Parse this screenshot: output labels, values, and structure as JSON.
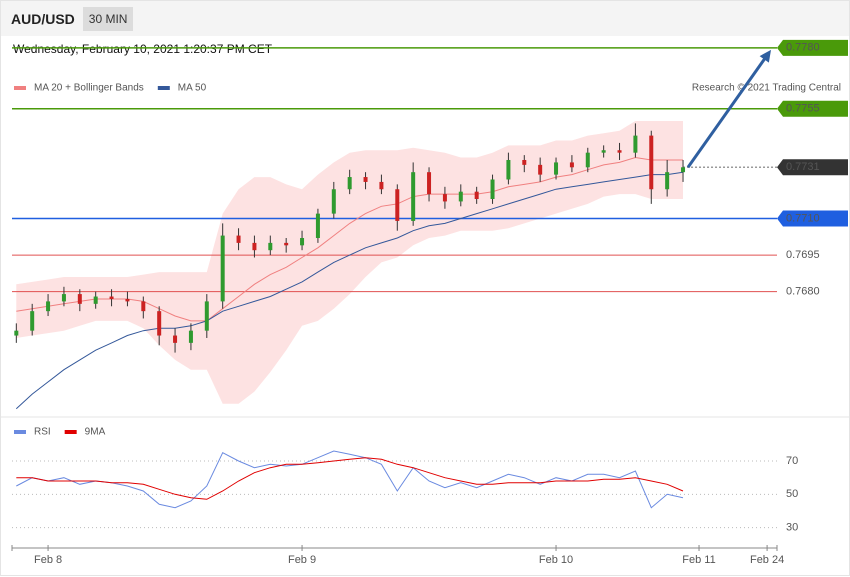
{
  "header": {
    "symbol": "AUD/USD",
    "interval": "30 MIN",
    "datetime": "Wednesday, February 10, 2021 1:20:37 PM CET",
    "credit": "Research © 2021 Trading Central"
  },
  "chart_data": [
    {
      "type": "candlestick",
      "up_color": "#2f9a2f",
      "down_color": "#cc2222",
      "xlim": [
        -0.142,
        2.87
      ],
      "ylim": [
        0.7629,
        0.77828
      ],
      "x": [
        -0.125,
        -0.0625,
        0,
        0.0625,
        0.125,
        0.1875,
        0.25,
        0.3125,
        0.375,
        0.4375,
        0.5,
        0.5625,
        0.625,
        0.6875,
        0.75,
        0.8125,
        0.875,
        0.9375,
        1,
        1.0625,
        1.125,
        1.1875,
        1.25,
        1.3125,
        1.375,
        1.4375,
        1.5,
        1.5625,
        1.625,
        1.6875,
        1.75,
        1.8125,
        1.875,
        1.9375,
        2,
        2.0625,
        2.125,
        2.1875,
        2.25,
        2.3125,
        2.375,
        2.4375,
        2.5
      ],
      "open": [
        0.7662,
        0.7664,
        0.7672,
        0.7676,
        0.7679,
        0.7675,
        0.7678,
        0.7677,
        0.7676,
        0.7672,
        0.7662,
        0.7659,
        0.7664,
        0.7676,
        0.7703,
        0.77,
        0.7697,
        0.77,
        0.7699,
        0.7702,
        0.7712,
        0.7722,
        0.7727,
        0.7725,
        0.7722,
        0.7709,
        0.7729,
        0.772,
        0.7717,
        0.7721,
        0.7718,
        0.7726,
        0.7734,
        0.7732,
        0.7728,
        0.7733,
        0.7731,
        0.7737,
        0.7738,
        0.7737,
        0.7744,
        0.7722,
        0.7729
      ],
      "high": [
        0.7667,
        0.7675,
        0.7679,
        0.7682,
        0.7681,
        0.768,
        0.7681,
        0.768,
        0.7678,
        0.7674,
        0.7665,
        0.7667,
        0.7679,
        0.7708,
        0.7706,
        0.7703,
        0.7703,
        0.7702,
        0.7705,
        0.7714,
        0.7725,
        0.773,
        0.7729,
        0.7728,
        0.7724,
        0.7733,
        0.7731,
        0.7723,
        0.7724,
        0.7723,
        0.7728,
        0.7737,
        0.7736,
        0.7735,
        0.7735,
        0.7736,
        0.7739,
        0.774,
        0.7741,
        0.7749,
        0.7746,
        0.7734,
        0.7734
      ],
      "low": [
        0.7659,
        0.7662,
        0.767,
        0.7674,
        0.7672,
        0.7673,
        0.7674,
        0.7674,
        0.7669,
        0.7658,
        0.7655,
        0.7656,
        0.7661,
        0.7673,
        0.7697,
        0.7694,
        0.7695,
        0.7696,
        0.7697,
        0.77,
        0.771,
        0.772,
        0.7722,
        0.772,
        0.7705,
        0.7707,
        0.7717,
        0.7714,
        0.7715,
        0.7716,
        0.7716,
        0.7724,
        0.7729,
        0.7725,
        0.7726,
        0.7729,
        0.7729,
        0.7735,
        0.7734,
        0.7735,
        0.7716,
        0.7719,
        0.7725
      ],
      "close": [
        0.7664,
        0.7672,
        0.7676,
        0.7679,
        0.7675,
        0.7678,
        0.7677,
        0.7676,
        0.7672,
        0.7662,
        0.7659,
        0.7664,
        0.7676,
        0.7703,
        0.77,
        0.7697,
        0.77,
        0.7699,
        0.7702,
        0.7712,
        0.7722,
        0.7727,
        0.7725,
        0.7722,
        0.7709,
        0.7729,
        0.772,
        0.7717,
        0.7721,
        0.7718,
        0.7726,
        0.7734,
        0.7732,
        0.7728,
        0.7733,
        0.7731,
        0.7737,
        0.7738,
        0.7737,
        0.7744,
        0.7722,
        0.7729,
        0.7731
      ],
      "series": [
        {
          "name": "MA 20 + Bollinger Bands",
          "color": "#f08080",
          "band_color": "#fde2e2",
          "values": [
            0.7672,
            0.7673,
            0.7674,
            0.7675,
            0.7676,
            0.7677,
            0.7677,
            0.7677,
            0.7676,
            0.7673,
            0.767,
            0.7668,
            0.7668,
            0.7673,
            0.7678,
            0.7683,
            0.7687,
            0.769,
            0.7694,
            0.7698,
            0.7703,
            0.7708,
            0.7712,
            0.7715,
            0.7716,
            0.7719,
            0.772,
            0.772,
            0.772,
            0.772,
            0.7721,
            0.7723,
            0.7724,
            0.7725,
            0.7727,
            0.7728,
            0.773,
            0.7732,
            0.7733,
            0.7735,
            0.7734,
            0.7734,
            0.7734
          ],
          "upper": [
            0.7683,
            0.7684,
            0.7685,
            0.7686,
            0.7686,
            0.7686,
            0.7686,
            0.7686,
            0.7687,
            0.7688,
            0.7688,
            0.7688,
            0.7688,
            0.7712,
            0.7722,
            0.7727,
            0.7727,
            0.7724,
            0.7722,
            0.7728,
            0.7733,
            0.7737,
            0.7738,
            0.7738,
            0.7738,
            0.7739,
            0.7738,
            0.7737,
            0.7735,
            0.7735,
            0.7737,
            0.774,
            0.774,
            0.774,
            0.7742,
            0.7742,
            0.7744,
            0.7745,
            0.7746,
            0.775,
            0.775,
            0.775,
            0.775
          ],
          "lower": [
            0.7661,
            0.7662,
            0.7663,
            0.7664,
            0.7666,
            0.7668,
            0.7668,
            0.7668,
            0.7665,
            0.7658,
            0.7652,
            0.7648,
            0.7648,
            0.7634,
            0.7634,
            0.7639,
            0.7647,
            0.7656,
            0.7666,
            0.7668,
            0.7673,
            0.7679,
            0.7686,
            0.7692,
            0.7694,
            0.7699,
            0.7702,
            0.7703,
            0.7705,
            0.7705,
            0.7705,
            0.7706,
            0.7708,
            0.771,
            0.7712,
            0.7714,
            0.7716,
            0.7719,
            0.772,
            0.772,
            0.7718,
            0.7718,
            0.7718
          ]
        },
        {
          "name": "MA 50",
          "color": "#34589a",
          "values": [
            0.7632,
            0.7638,
            0.7643,
            0.7648,
            0.7652,
            0.7656,
            0.7659,
            0.7662,
            0.7664,
            0.7665,
            0.7665,
            0.7666,
            0.7668,
            0.7672,
            0.7674,
            0.7676,
            0.7678,
            0.7681,
            0.7684,
            0.7688,
            0.7692,
            0.7695,
            0.7698,
            0.77,
            0.7702,
            0.7705,
            0.7707,
            0.7708,
            0.771,
            0.7712,
            0.7714,
            0.7716,
            0.7718,
            0.772,
            0.7722,
            0.7723,
            0.7724,
            0.7725,
            0.7726,
            0.7727,
            0.7728,
            0.7728,
            0.7729
          ]
        }
      ],
      "levels": [
        {
          "value": 0.778,
          "label": "0.7780",
          "color": "#4a9a0a",
          "boxed": true
        },
        {
          "value": 0.7755,
          "color": "#4a9a0a",
          "boxed": true
        },
        {
          "value": 0.7731,
          "color": "#333333",
          "boxed": true,
          "current": true
        },
        {
          "value": 0.771,
          "label": "0.7710",
          "color": "#1f5fe0",
          "boxed": true
        },
        {
          "value": 0.7695,
          "color": "#e05050",
          "boxed": false
        },
        {
          "value": 0.768,
          "label": "0.7680",
          "color": "#e05050",
          "boxed": false
        }
      ]
    },
    {
      "type": "line",
      "xlim": [
        -0.142,
        2.87
      ],
      "ylim": [
        19,
        94
      ],
      "yticks": [
        30,
        50,
        70
      ],
      "xticks": [
        {
          "value": 0,
          "label": "Feb 8"
        },
        {
          "value": 1,
          "label": "Feb 9"
        },
        {
          "value": 2,
          "label": "Feb 10"
        },
        {
          "value": 2.563,
          "label": "Feb 11"
        },
        {
          "value": 2.831,
          "label": "Feb 24"
        }
      ],
      "x": [
        -0.125,
        -0.0625,
        0,
        0.0625,
        0.125,
        0.1875,
        0.25,
        0.3125,
        0.375,
        0.4375,
        0.5,
        0.5625,
        0.625,
        0.6875,
        0.75,
        0.8125,
        0.875,
        0.9375,
        1,
        1.0625,
        1.125,
        1.1875,
        1.25,
        1.3125,
        1.375,
        1.4375,
        1.5,
        1.5625,
        1.625,
        1.6875,
        1.75,
        1.8125,
        1.875,
        1.9375,
        2,
        2.0625,
        2.125,
        2.1875,
        2.25,
        2.3125,
        2.375,
        2.4375,
        2.5
      ],
      "series": [
        {
          "name": "RSI",
          "color": "#6a8ae0",
          "values": [
            55,
            60,
            58,
            60,
            56,
            58,
            57,
            55,
            52,
            44,
            42,
            46,
            55,
            75,
            70,
            66,
            68,
            67,
            68,
            72,
            76,
            74,
            72,
            68,
            52,
            66,
            58,
            54,
            57,
            54,
            58,
            62,
            60,
            56,
            60,
            58,
            62,
            62,
            60,
            64,
            42,
            50,
            48
          ]
        },
        {
          "name": "9MA",
          "color": "#e00000",
          "values": [
            60,
            60,
            58,
            58,
            58,
            58,
            57,
            57,
            56,
            53,
            50,
            48,
            47,
            52,
            58,
            63,
            66,
            68,
            68,
            69,
            70,
            71,
            72,
            71,
            68,
            66,
            63,
            60,
            58,
            56,
            56,
            57,
            57,
            57,
            58,
            58,
            58,
            59,
            59,
            60,
            58,
            56,
            52
          ]
        }
      ]
    }
  ]
}
